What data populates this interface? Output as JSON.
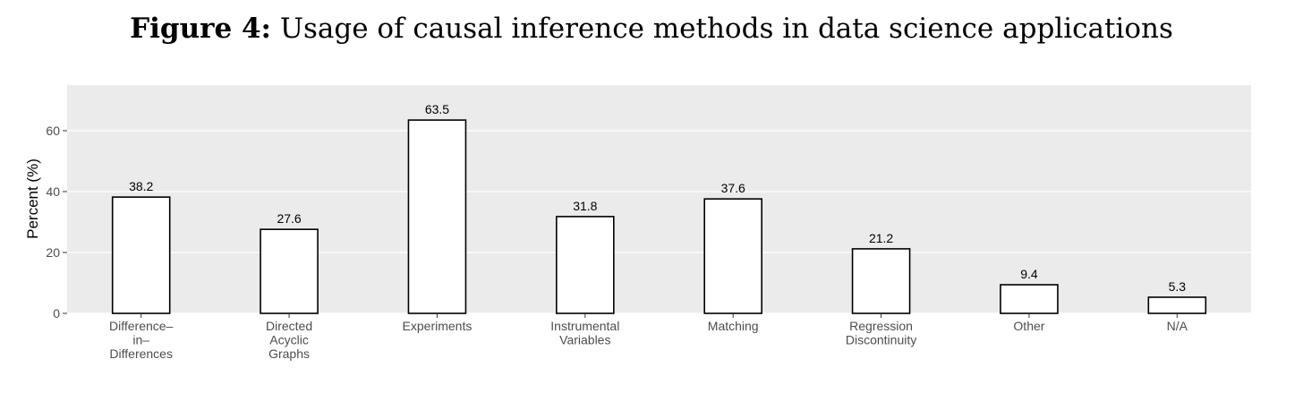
{
  "figure": {
    "label": "Figure 4:",
    "caption": "Usage of causal inference methods in data science applications"
  },
  "chart_data": {
    "type": "bar",
    "categories": [
      [
        "Difference–",
        "in–",
        "Differences"
      ],
      [
        "Directed",
        "Acyclic",
        "Graphs"
      ],
      [
        "Experiments"
      ],
      [
        "Instrumental",
        "Variables"
      ],
      [
        "Matching"
      ],
      [
        "Regression",
        "Discontinuity"
      ],
      [
        "Other"
      ],
      [
        "N/A"
      ]
    ],
    "values": [
      38.2,
      27.6,
      63.5,
      31.8,
      37.6,
      21.2,
      9.4,
      5.3
    ],
    "value_labels": [
      "38.2",
      "27.6",
      "63.5",
      "31.8",
      "37.6",
      "21.2",
      "9.4",
      "5.3"
    ],
    "ylabel": "Percent (%)",
    "xlabel": "",
    "yticks": [
      0,
      20,
      40,
      60
    ],
    "ylim": [
      0,
      75
    ],
    "grid": true,
    "colors": {
      "panel": "#ebebeb",
      "grid": "#ffffff",
      "bar_fill": "#ffffff",
      "bar_stroke": "#000000"
    }
  }
}
